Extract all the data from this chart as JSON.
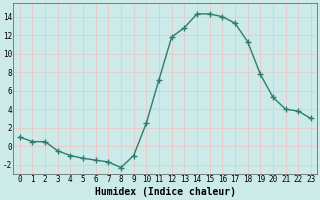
{
  "x": [
    0,
    1,
    2,
    3,
    4,
    5,
    6,
    7,
    8,
    9,
    10,
    11,
    12,
    13,
    14,
    15,
    16,
    17,
    18,
    19,
    20,
    21,
    22,
    23
  ],
  "y": [
    1,
    0.5,
    0.5,
    -0.5,
    -1,
    -1.3,
    -1.5,
    -1.7,
    -2.3,
    -1.0,
    2.5,
    7.2,
    11.8,
    12.8,
    14.3,
    14.3,
    14.0,
    13.3,
    11.3,
    7.8,
    5.3,
    4.0,
    3.8,
    3.0
  ],
  "line_color": "#2d7d6e",
  "marker": "+",
  "marker_size": 4,
  "linewidth": 1.0,
  "bg_color": "#cceae7",
  "grid_color": "#e8c8c8",
  "xlabel": "Humidex (Indice chaleur)",
  "xlabel_fontsize": 7,
  "xlabel_fontweight": "bold",
  "ylim": [
    -3,
    15.5
  ],
  "xlim": [
    -0.5,
    23.5
  ],
  "yticks": [
    -2,
    0,
    2,
    4,
    6,
    8,
    10,
    12,
    14
  ],
  "xticks": [
    0,
    1,
    2,
    3,
    4,
    5,
    6,
    7,
    8,
    9,
    10,
    11,
    12,
    13,
    14,
    15,
    16,
    17,
    18,
    19,
    20,
    21,
    22,
    23
  ],
  "tick_fontsize": 5.5
}
